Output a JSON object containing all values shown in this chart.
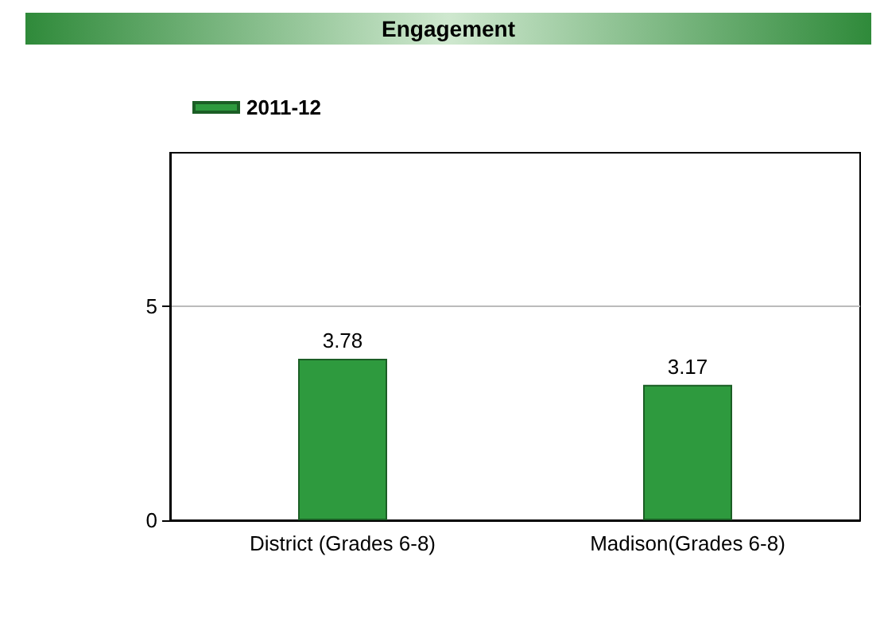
{
  "chart_data": {
    "type": "bar",
    "title": "Engagement",
    "categories": [
      "District (Grades 6-8)",
      "Madison(Grades 6-8)"
    ],
    "series": [
      {
        "name": "2011-12",
        "color": "#2e9a3e",
        "values": [
          3.78,
          3.17
        ]
      }
    ],
    "ylim": [
      0,
      8.6
    ],
    "yticks": [
      0,
      5
    ],
    "grid": "y",
    "legend": "top left",
    "data_labels": true
  }
}
